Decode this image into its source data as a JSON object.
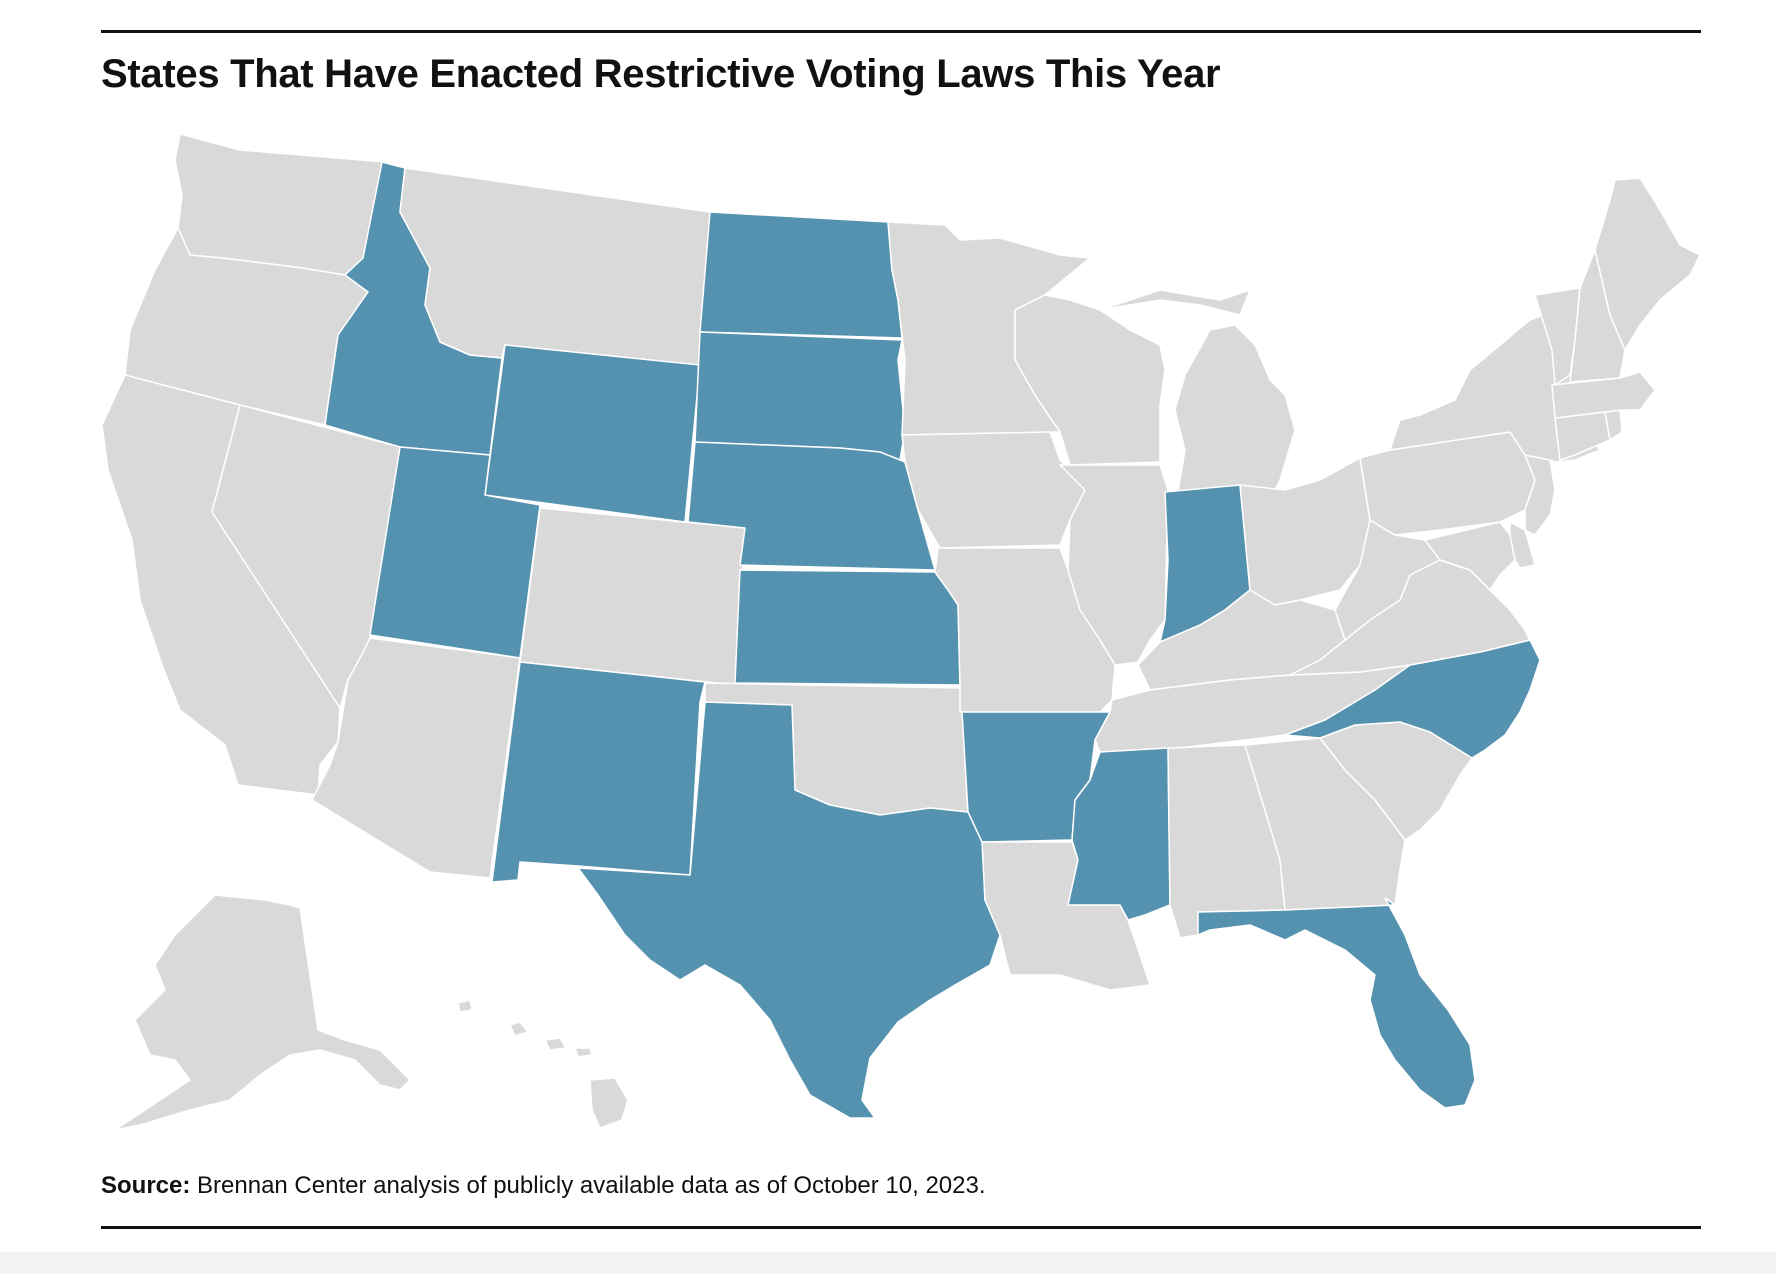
{
  "title": "States That Have Enacted Restrictive Voting Laws This Year",
  "source_label": "Source:",
  "source_text": " Brennan Center analysis of publicly available data as of October 10, 2023.",
  "colors": {
    "highlight": "#5592b0",
    "default": "#d9d9d9",
    "border": "#ffffff",
    "rule": "#111111"
  },
  "map": {
    "type": "choropleth",
    "highlighted_states": [
      "Idaho",
      "Wyoming",
      "Utah",
      "North Dakota",
      "South Dakota",
      "Nebraska",
      "Kansas",
      "New Mexico",
      "Texas",
      "Arkansas",
      "Mississippi",
      "Indiana",
      "North Carolina",
      "Florida"
    ],
    "other_states": [
      "Washington",
      "Oregon",
      "California",
      "Nevada",
      "Montana",
      "Arizona",
      "Colorado",
      "Oklahoma",
      "Minnesota",
      "Iowa",
      "Missouri",
      "Louisiana",
      "Wisconsin",
      "Illinois",
      "Michigan",
      "Ohio",
      "Kentucky",
      "Tennessee",
      "Alabama",
      "Georgia",
      "South Carolina",
      "Virginia",
      "West Virginia",
      "Pennsylvania",
      "New York",
      "Maryland",
      "Delaware",
      "New Jersey",
      "Connecticut",
      "Rhode Island",
      "Massachusetts",
      "Vermont",
      "New Hampshire",
      "Maine",
      "Alaska",
      "Hawaii"
    ]
  }
}
